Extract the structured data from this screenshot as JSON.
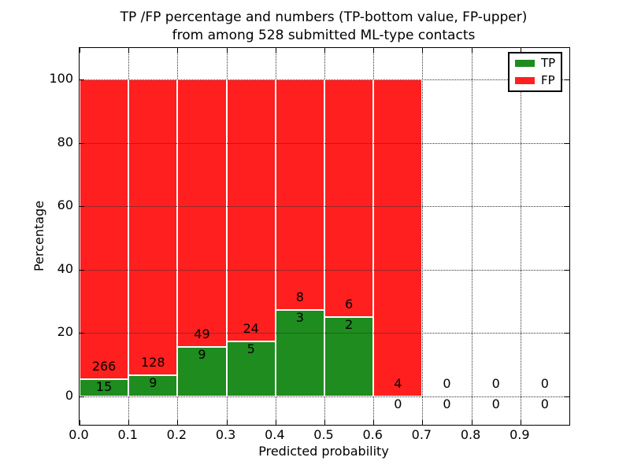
{
  "figure": {
    "title_line1": "TP /FP percentage and numbers (TP-bottom value, FP-upper)",
    "title_line2": "from among 528 submitted ML-type contacts"
  },
  "chart_data": {
    "type": "bar",
    "stacked": true,
    "title": "TP /FP percentage and numbers (TP-bottom value, FP-upper) from among 528 submitted ML-type contacts",
    "xlabel": "Predicted probability",
    "ylabel": "Percentage",
    "xlim": [
      0.0,
      1.0
    ],
    "ylim": [
      -9,
      110
    ],
    "xticks": [
      "0.0",
      "0.1",
      "0.2",
      "0.3",
      "0.4",
      "0.5",
      "0.6",
      "0.7",
      "0.8",
      "0.9"
    ],
    "yticks": [
      0,
      20,
      40,
      60,
      80,
      100
    ],
    "grid": "dotted",
    "legend_position": "upper-right",
    "bin_starts": [
      0.0,
      0.1,
      0.2,
      0.3,
      0.4,
      0.5,
      0.6,
      0.7,
      0.8,
      0.9
    ],
    "bin_width": 0.1,
    "series": [
      {
        "name": "TP",
        "color": "#1e8c1e",
        "counts": [
          15,
          9,
          9,
          5,
          3,
          2,
          0,
          0,
          0,
          0
        ]
      },
      {
        "name": "FP",
        "color": "#ff1f1f",
        "counts": [
          266,
          128,
          49,
          24,
          8,
          6,
          4,
          0,
          0,
          0
        ]
      }
    ],
    "tp_percentages": [
      5.3,
      6.6,
      15.5,
      17.2,
      27.3,
      25.0,
      0.0,
      null,
      null,
      null
    ],
    "total_contacts": 528
  }
}
